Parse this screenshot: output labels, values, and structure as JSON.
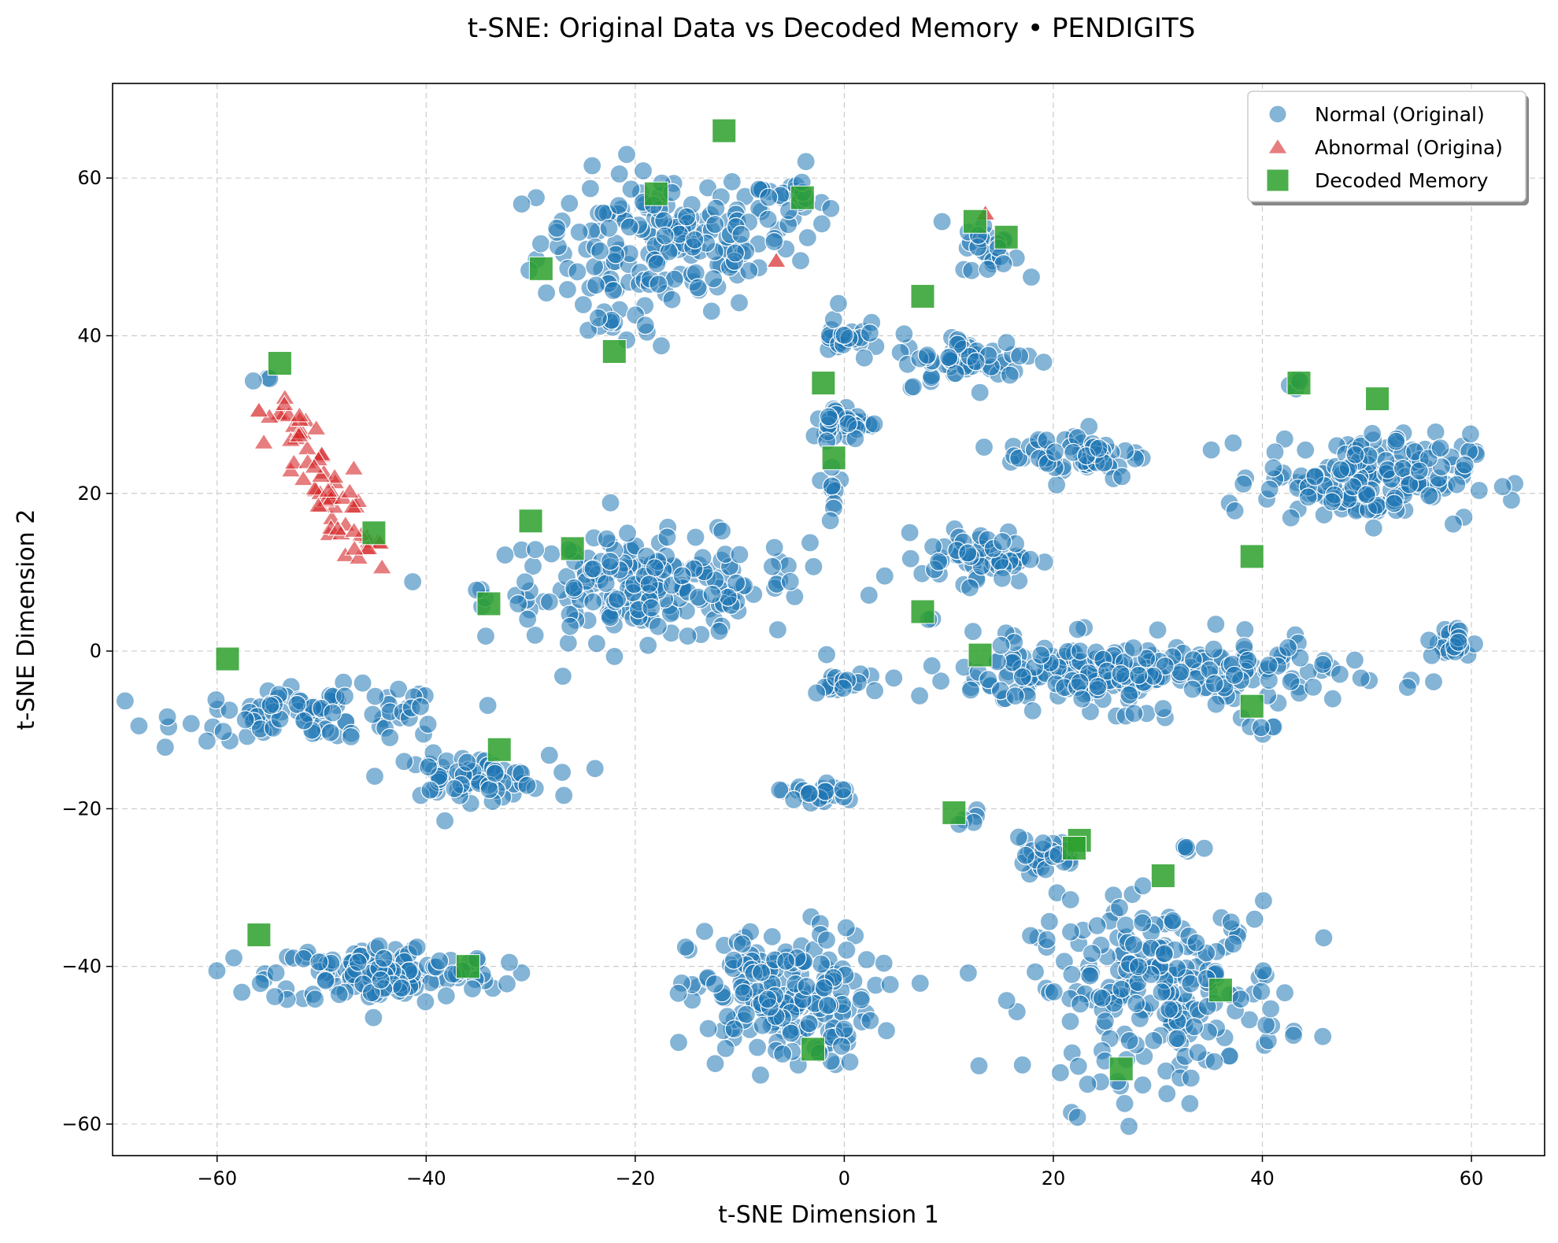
{
  "chart_data": {
    "type": "scatter",
    "title": "t-SNE: Original Data vs Decoded Memory • PENDIGITS",
    "xlabel": "t-SNE Dimension 1",
    "ylabel": "t-SNE Dimension 2",
    "xlim": [
      -70,
      67
    ],
    "ylim": [
      -64,
      72
    ],
    "xticks": [
      -60,
      -40,
      -20,
      0,
      20,
      40,
      60
    ],
    "yticks": [
      -60,
      -40,
      -20,
      0,
      20,
      40,
      60
    ],
    "grid": true,
    "legend_position": "top-right",
    "normal_clusters": [
      {
        "cx": -17,
        "cy": 52,
        "rx": 11,
        "ry": 8,
        "n": 170
      },
      {
        "cx": -5,
        "cy": 57,
        "rx": 3,
        "ry": 4,
        "n": 25
      },
      {
        "cx": -22,
        "cy": 42,
        "rx": 3,
        "ry": 3,
        "n": 15
      },
      {
        "cx": -19,
        "cy": 8,
        "rx": 14,
        "ry": 6,
        "n": 200
      },
      {
        "cx": -50,
        "cy": -8,
        "rx": 12,
        "ry": 3,
        "n": 100
      },
      {
        "cx": -36,
        "cy": -16,
        "rx": 7,
        "ry": 2.5,
        "n": 70
      },
      {
        "cx": -44,
        "cy": -41,
        "rx": 10,
        "ry": 3.5,
        "n": 140
      },
      {
        "cx": -6,
        "cy": -44,
        "rx": 8,
        "ry": 8,
        "n": 200
      },
      {
        "cx": 30,
        "cy": -43,
        "rx": 11,
        "ry": 10,
        "n": 230
      },
      {
        "cx": 27,
        "cy": -3,
        "rx": 18,
        "ry": 4,
        "n": 250
      },
      {
        "cx": 50,
        "cy": 22,
        "rx": 9,
        "ry": 5,
        "n": 180
      },
      {
        "cx": 58,
        "cy": 1,
        "rx": 2,
        "ry": 2,
        "n": 25
      },
      {
        "cx": 13,
        "cy": 12,
        "rx": 5,
        "ry": 3,
        "n": 60
      },
      {
        "cx": 22,
        "cy": 25,
        "rx": 6,
        "ry": 3,
        "n": 60
      },
      {
        "cx": 12,
        "cy": 37,
        "rx": 6,
        "ry": 3,
        "n": 60
      },
      {
        "cx": 14,
        "cy": 51,
        "rx": 2.5,
        "ry": 3,
        "n": 25
      },
      {
        "cx": 0,
        "cy": 29,
        "rx": 3,
        "ry": 2,
        "n": 40
      },
      {
        "cx": 0,
        "cy": 40,
        "rx": 2,
        "ry": 3,
        "n": 25
      },
      {
        "cx": -1,
        "cy": 21,
        "rx": 1,
        "ry": 3,
        "n": 10
      },
      {
        "cx": 19,
        "cy": -26,
        "rx": 3,
        "ry": 2,
        "n": 25
      },
      {
        "cx": -3,
        "cy": -18,
        "rx": 4,
        "ry": 1.5,
        "n": 25
      },
      {
        "cx": -1,
        "cy": -4,
        "rx": 2,
        "ry": 1,
        "n": 15
      },
      {
        "cx": 12,
        "cy": -21,
        "rx": 1,
        "ry": 1,
        "n": 5
      },
      {
        "cx": 33,
        "cy": -25,
        "rx": 1,
        "ry": 1,
        "n": 5
      },
      {
        "cx": 40,
        "cy": -10,
        "rx": 1,
        "ry": 1,
        "n": 5
      },
      {
        "cx": 8,
        "cy": 4,
        "rx": 0.5,
        "ry": 0.5,
        "n": 2
      },
      {
        "cx": 43,
        "cy": 34,
        "rx": 1,
        "ry": 1,
        "n": 4
      },
      {
        "cx": -55,
        "cy": 35,
        "rx": 1,
        "ry": 1,
        "n": 3
      }
    ],
    "abnormal_band": {
      "x_start": -54,
      "y_start": 31,
      "x_end": -45.5,
      "y_end": 12,
      "n": 65,
      "spread": 1.3
    },
    "abnormal_points": [
      [
        -56,
        30.5
      ],
      [
        -6.5,
        49.5
      ],
      [
        13.5,
        55.5
      ]
    ],
    "decoded_memory": [
      [
        -11.5,
        66
      ],
      [
        -18,
        58
      ],
      [
        -4,
        57.5
      ],
      [
        -29,
        48.5
      ],
      [
        -22,
        38
      ],
      [
        -54,
        36.5
      ],
      [
        -45,
        15
      ],
      [
        -30,
        16.5
      ],
      [
        -26,
        13
      ],
      [
        -34,
        6
      ],
      [
        -59,
        -1
      ],
      [
        -33,
        -12.5
      ],
      [
        -56,
        -36
      ],
      [
        -36,
        -40
      ],
      [
        -3,
        -50.5
      ],
      [
        -2,
        34
      ],
      [
        -1,
        24.5
      ],
      [
        7.5,
        45
      ],
      [
        12.5,
        54.5
      ],
      [
        15.5,
        52.5
      ],
      [
        7.5,
        5
      ],
      [
        13,
        -0.5
      ],
      [
        10.5,
        -20.5
      ],
      [
        22.5,
        -24
      ],
      [
        22,
        -25
      ],
      [
        30.5,
        -28.5
      ],
      [
        26.5,
        -53
      ],
      [
        36,
        -43
      ],
      [
        39,
        -7
      ],
      [
        39,
        12
      ],
      [
        43.5,
        34
      ],
      [
        51,
        32
      ]
    ],
    "series": [
      {
        "name": "Normal (Original)",
        "marker": "circle",
        "color": "#1f77b4",
        "opacity": 0.55
      },
      {
        "name": "Abnormal (Origina)",
        "marker": "triangle",
        "color": "#d62728",
        "opacity": 0.55
      },
      {
        "name": "Decoded Memory",
        "marker": "square",
        "color": "#2ca02c",
        "opacity": 0.8
      }
    ],
    "colors": {
      "normal": "#1f77b4",
      "abnormal": "#d62728",
      "decoded": "#2ca02c"
    }
  }
}
